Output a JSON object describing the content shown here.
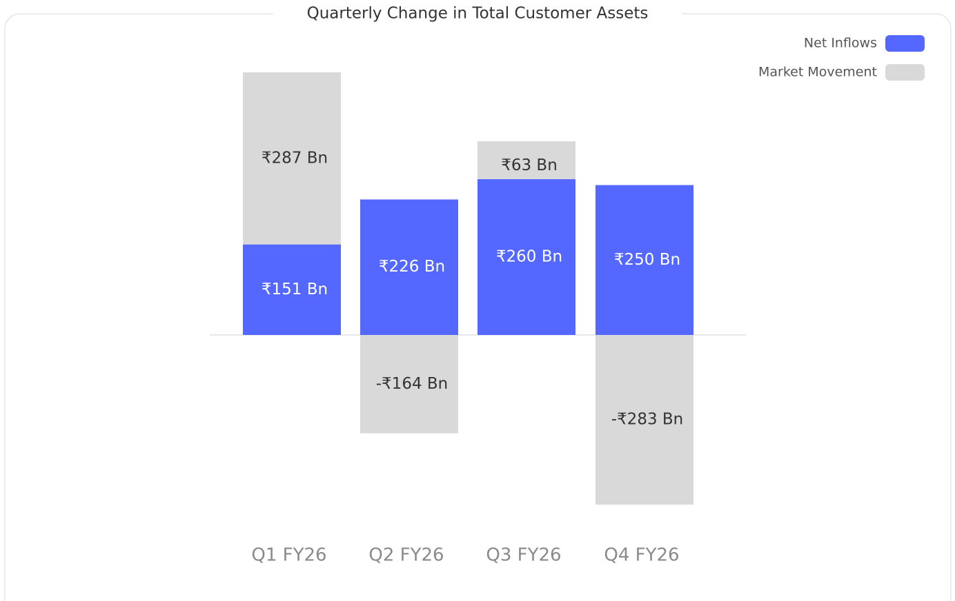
{
  "chart_data": {
    "type": "stacked-bar",
    "title": "Quarterly Change in Total Customer Assets",
    "categories": [
      "Q1 FY26",
      "Q2 FY26",
      "Q3 FY26",
      "Q4 FY26"
    ],
    "series": [
      {
        "name": "Net Inflows",
        "color": "#5468ff",
        "values": [
          151,
          226,
          260,
          250
        ],
        "value_labels": [
          "₹151 Bn",
          "₹226 Bn",
          "₹260 Bn",
          "₹250 Bn"
        ]
      },
      {
        "name": "Market Movement",
        "color": "#d9d9d9",
        "values": [
          287,
          -164,
          63,
          -283
        ],
        "value_labels": [
          "₹287 Bn",
          "-₹164 Bn",
          "₹63 Bn",
          "-₹283 Bn"
        ]
      }
    ],
    "legend": "top-right",
    "grid": false
  }
}
